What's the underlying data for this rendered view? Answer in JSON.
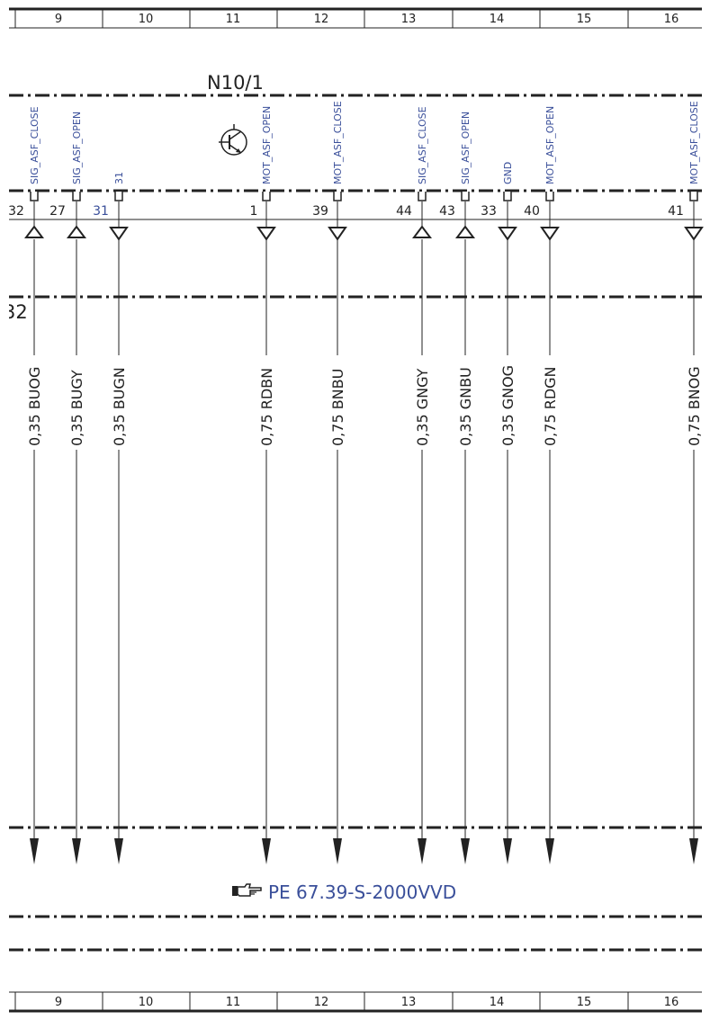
{
  "columns": [
    "9",
    "10",
    "11",
    "12",
    "13",
    "14",
    "15",
    "16"
  ],
  "component": "N10/1",
  "side_fragment": "32",
  "cross_reference": {
    "icon": "pointing-hand-icon",
    "text": "PE 67.39-S-2000VVD"
  },
  "pins": [
    {
      "signal": "SIG_ASF_CLOSE",
      "pin": "32",
      "direction": "up",
      "wire": "0,35 BUOG"
    },
    {
      "signal": "SIG_ASF_OPEN",
      "pin": "27",
      "direction": "up",
      "wire": "0,35 BUGY"
    },
    {
      "signal": "31",
      "pin": "31",
      "direction": "down",
      "wire": "0,35 BUGN",
      "pin_color": "blue"
    },
    {
      "signal": "MOT_ASF_OPEN",
      "pin": "1",
      "direction": "down",
      "wire": "0,75 RDBN"
    },
    {
      "signal": "MOT_ASF_CLOSE",
      "pin": "39",
      "direction": "down",
      "wire": "0,75 BNBU"
    },
    {
      "signal": "SIG_ASF_CLOSE",
      "pin": "44",
      "direction": "up",
      "wire": "0,35 GNGY"
    },
    {
      "signal": "SIG_ASF_OPEN",
      "pin": "43",
      "direction": "up",
      "wire": "0,35 GNBU"
    },
    {
      "signal": "GND",
      "pin": "33",
      "direction": "down",
      "wire": "0,35 GNOG"
    },
    {
      "signal": "MOT_ASF_OPEN",
      "pin": "40",
      "direction": "down",
      "wire": "0,75 RDGN"
    },
    {
      "signal": "MOT_ASF_CLOSE",
      "pin": "41",
      "direction": "down",
      "wire": "0,75 BNOG"
    }
  ]
}
